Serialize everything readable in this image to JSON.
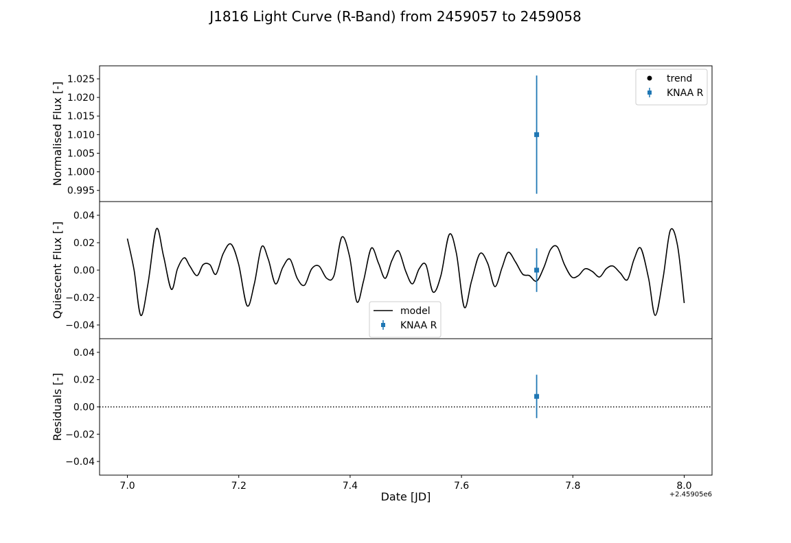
{
  "title": "J1816 Light Curve (R-Band) from 2459057 to 2459058",
  "chart_data": [
    {
      "type": "scatter",
      "panel": "top",
      "ylabel": "Normalised Flux [-]",
      "ylim": [
        0.992,
        1.0285
      ],
      "yticks": [
        "0.995",
        "1.000",
        "1.005",
        "1.010",
        "1.015",
        "1.020",
        "1.025"
      ],
      "xlim": [
        6.95,
        8.05
      ],
      "legend": {
        "placement": "top-right",
        "entries": [
          "trend",
          "KNAA R"
        ]
      },
      "series": [
        {
          "name": "trend",
          "color": "#000000",
          "x": [],
          "y": []
        },
        {
          "name": "KNAA R",
          "color": "#1f77b4",
          "x": [
            7.735
          ],
          "y": [
            1.01
          ],
          "yerr": [
            0.0159
          ]
        }
      ]
    },
    {
      "type": "line",
      "panel": "middle",
      "ylabel": "Quiescent Flux [-]",
      "ylim": [
        -0.05,
        0.05
      ],
      "yticks": [
        "−0.04",
        "−0.02",
        "0.00",
        "0.02",
        "0.04"
      ],
      "xlim": [
        6.95,
        8.05
      ],
      "legend": {
        "placement": "bottom-center",
        "entries": [
          "model",
          "KNAA R"
        ]
      },
      "series": [
        {
          "name": "model",
          "color": "#000000",
          "x": [
            7.0,
            7.012,
            7.024,
            7.037,
            7.052,
            7.065,
            7.079,
            7.09,
            7.102,
            7.112,
            7.125,
            7.136,
            7.148,
            7.159,
            7.172,
            7.186,
            7.2,
            7.215,
            7.228,
            7.241,
            7.253,
            7.266,
            7.279,
            7.292,
            7.305,
            7.318,
            7.331,
            7.344,
            7.358,
            7.371,
            7.385,
            7.399,
            7.412,
            7.424,
            7.438,
            7.451,
            7.463,
            7.475,
            7.487,
            7.5,
            7.512,
            7.524,
            7.536,
            7.549,
            7.563,
            7.578,
            7.591,
            7.605,
            7.618,
            7.633,
            7.647,
            7.66,
            7.673,
            7.684,
            7.697,
            7.71,
            7.722,
            7.735,
            7.748,
            7.76,
            7.772,
            7.785,
            7.798,
            7.81,
            7.822,
            7.835,
            7.848,
            7.86,
            7.872,
            7.885,
            7.898,
            7.91,
            7.922,
            7.936,
            7.948,
            7.962,
            7.975,
            7.988,
            8.0
          ],
          "y": [
            0.023,
            0.0,
            -0.033,
            -0.01,
            0.03,
            0.01,
            -0.014,
            0.001,
            0.009,
            0.003,
            -0.004,
            0.004,
            0.004,
            -0.003,
            0.012,
            0.019,
            0.004,
            -0.026,
            -0.01,
            0.017,
            0.008,
            -0.01,
            0.002,
            0.008,
            -0.006,
            -0.011,
            0.001,
            0.003,
            -0.006,
            -0.004,
            0.024,
            0.01,
            -0.023,
            -0.008,
            0.016,
            0.005,
            -0.006,
            0.007,
            0.014,
            -0.001,
            -0.01,
            0.001,
            0.004,
            -0.016,
            -0.004,
            0.026,
            0.012,
            -0.027,
            -0.008,
            0.012,
            0.005,
            -0.012,
            0.002,
            0.013,
            0.006,
            -0.003,
            -0.004,
            -0.008,
            0.002,
            0.015,
            0.017,
            0.004,
            -0.005,
            -0.004,
            0.001,
            -0.001,
            -0.005,
            0.001,
            0.003,
            -0.002,
            -0.007,
            0.008,
            0.016,
            -0.006,
            -0.033,
            -0.006,
            0.029,
            0.018,
            -0.024
          ]
        },
        {
          "name": "KNAA R",
          "color": "#1f77b4",
          "x": [
            7.735
          ],
          "y": [
            0.0
          ],
          "yerr": [
            0.0159
          ]
        }
      ]
    },
    {
      "type": "scatter",
      "panel": "bottom",
      "ylabel": "Residuals [-]",
      "xlabel": "Date [JD]",
      "x_offset_label": "+2.45905e6",
      "ylim": [
        -0.05,
        0.05
      ],
      "yticks": [
        "−0.04",
        "−0.02",
        "0.00",
        "0.02",
        "0.04"
      ],
      "xlim": [
        6.95,
        8.05
      ],
      "xticks": [
        "7.0",
        "7.2",
        "7.4",
        "7.6",
        "7.8",
        "8.0"
      ],
      "hline": {
        "y": 0.0,
        "style": "dotted",
        "color": "#000000"
      },
      "series": [
        {
          "name": "KNAA R",
          "color": "#1f77b4",
          "x": [
            7.735
          ],
          "y": [
            0.0077
          ],
          "yerr": [
            0.0159
          ]
        }
      ]
    }
  ]
}
